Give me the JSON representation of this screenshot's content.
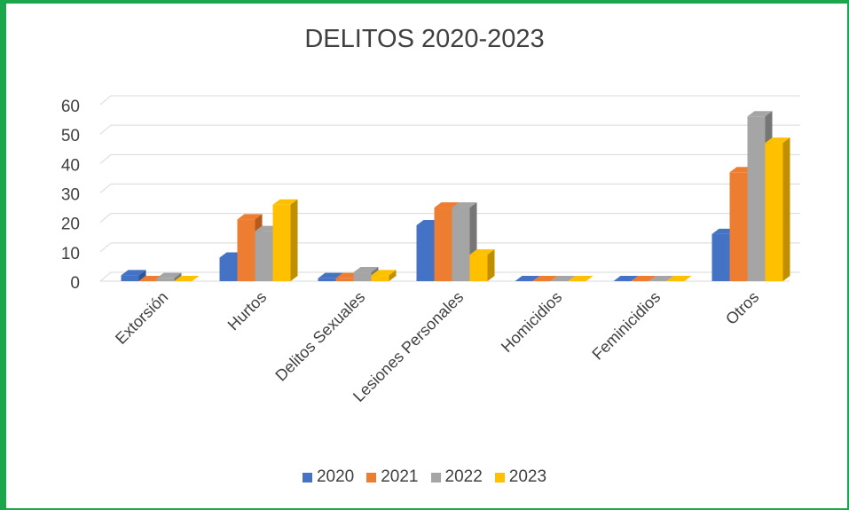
{
  "colors": {
    "frame": "#1aa64a",
    "series": [
      "#4472c4",
      "#ed7d31",
      "#a5a5a5",
      "#ffc000"
    ],
    "series_dark": [
      "#2f5597",
      "#b85a1b",
      "#767676",
      "#bf8f00"
    ],
    "grid": "#d9d9d9",
    "text": "#404040"
  },
  "chart_data": {
    "type": "bar",
    "title": "DELITOS 2020-2023",
    "categories": [
      "Extorsión",
      "Hurtos",
      "Delitos Sexuales",
      "Lesiones Personales",
      "Homicidios",
      "Feminicidios",
      "Otros"
    ],
    "series": [
      {
        "name": "2020",
        "values": [
          2,
          8,
          1,
          19,
          0,
          0,
          16
        ]
      },
      {
        "name": "2021",
        "values": [
          0,
          21,
          1,
          25,
          0,
          0,
          37
        ]
      },
      {
        "name": "2022",
        "values": [
          1,
          17,
          3,
          25,
          0,
          0,
          56
        ]
      },
      {
        "name": "2023",
        "values": [
          0,
          26,
          2,
          9,
          0,
          0,
          47
        ]
      }
    ],
    "ylim": [
      0,
      60
    ],
    "yticks": [
      "0",
      "10",
      "20",
      "30",
      "40",
      "50",
      "60"
    ],
    "grid": true,
    "legend_position": "bottom"
  }
}
